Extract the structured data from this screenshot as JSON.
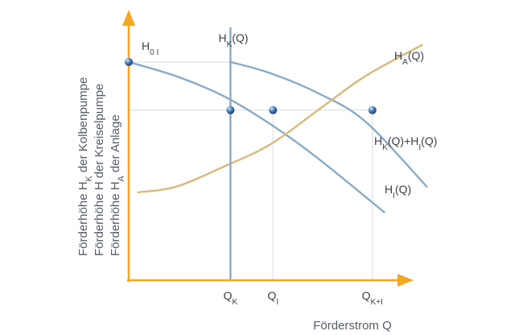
{
  "chart_data": {
    "type": "line",
    "title": "",
    "xlabel": "Förderstrom Q",
    "ylabel_lines": [
      {
        "main": "Förderhöhe H",
        "sub": "K",
        "rest": " der Kolbenpumpe"
      },
      {
        "main": "Förderhöhe H der Kreiselpumpe",
        "sub": "",
        "rest": ""
      },
      {
        "main": "Förderhöhe H",
        "sub": "A",
        "rest": " der Anlage"
      }
    ],
    "xlim": [
      0,
      10
    ],
    "ylim": [
      0,
      10
    ],
    "axis_color": "#f5a623",
    "grid": false,
    "series": [
      {
        "key": "HI",
        "label": {
          "main": "H",
          "sub": "I",
          "rest": "(Q)"
        },
        "color": "#8aabc4",
        "x": [
          0,
          2,
          4,
          6,
          8,
          10.8
        ],
        "y": [
          7.7,
          7.2,
          6.5,
          5.5,
          4.3,
          2.4
        ]
      },
      {
        "key": "HKI",
        "label": {
          "main": "H",
          "sub": "K",
          "rest": "(Q)+H",
          "sub2": "I",
          "rest2": "(Q)"
        },
        "color": "#8aabc4",
        "x": [
          4.3,
          6,
          8,
          10,
          12.6
        ],
        "y": [
          7.7,
          7.3,
          6.6,
          5.6,
          3.3
        ]
      },
      {
        "key": "HA",
        "label": {
          "main": "H",
          "sub": "A",
          "rest": "(Q)"
        },
        "color": "#d9b97a",
        "x": [
          0.4,
          2,
          4,
          6,
          8,
          10,
          12.4
        ],
        "y": [
          3.1,
          3.3,
          4.0,
          4.8,
          6.0,
          7.2,
          8.3
        ]
      },
      {
        "key": "HK",
        "label": {
          "main": "H",
          "sub": "K",
          "rest": "(Q)"
        },
        "color": "#8aabc4",
        "x": [
          4.3,
          4.3
        ],
        "y": [
          0,
          8.9
        ]
      }
    ],
    "annotations": [
      {
        "main": "H",
        "sub": "0 I",
        "x": 0.4,
        "y": 8.2
      }
    ],
    "points": [
      {
        "x": 0,
        "y": 7.7
      },
      {
        "x": 4.3,
        "y": 6.0
      },
      {
        "x": 6.1,
        "y": 6.0
      },
      {
        "x": 10.3,
        "y": 6.0
      }
    ],
    "guides": [
      {
        "x1": 0,
        "y1": 7.7,
        "x2": 4.3,
        "y2": 7.7
      },
      {
        "x1": 0,
        "y1": 6.0,
        "x2": 10.3,
        "y2": 6.0
      },
      {
        "x1": 6.1,
        "y1": 0,
        "x2": 6.1,
        "y2": 6.0
      },
      {
        "x1": 10.3,
        "y1": 0,
        "x2": 10.3,
        "y2": 6.0
      }
    ],
    "xticks": [
      {
        "x": 4.3,
        "main": "Q",
        "sub": "K"
      },
      {
        "x": 6.1,
        "main": "Q",
        "sub": "I"
      },
      {
        "x": 10.3,
        "main": "Q",
        "sub": "K+I"
      }
    ]
  }
}
